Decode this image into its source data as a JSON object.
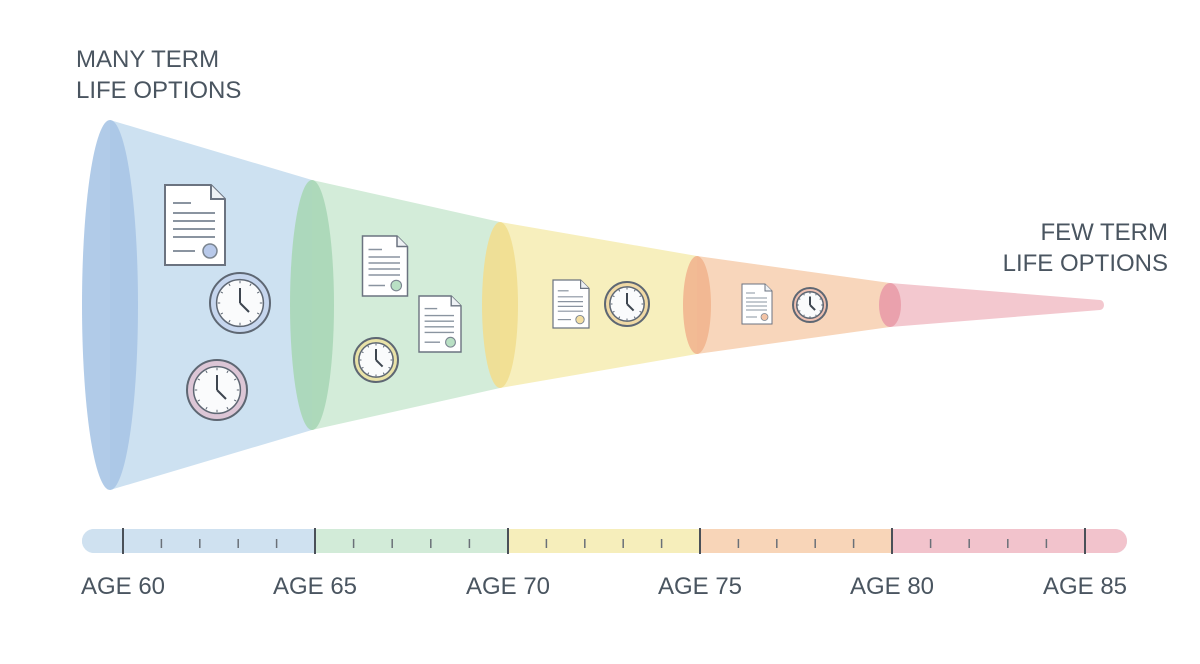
{
  "labels": {
    "many": [
      "MANY TERM",
      "LIFE OPTIONS"
    ],
    "few": [
      "FEW TERM",
      "LIFE OPTIONS"
    ]
  },
  "timeline": {
    "ages": [
      "AGE 60",
      "AGE 65",
      "AGE 70",
      "AGE 75",
      "AGE 80",
      "AGE 85"
    ]
  }
}
